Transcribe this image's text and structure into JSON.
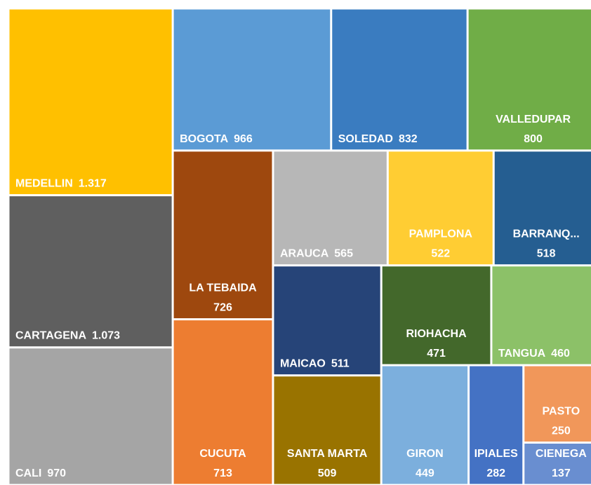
{
  "chart_data": {
    "type": "treemap",
    "categories": [
      "MEDELLIN",
      "CARTAGENA",
      "CALI",
      "BOGOTA",
      "SOLEDAD",
      "VALLEDUPAR",
      "LA TEBAIDA",
      "CUCUTA",
      "ARAUCA",
      "PAMPLONA",
      "BARRANQ...",
      "MAICAO",
      "SANTA MARTA",
      "RIOHACHA",
      "TANGUA",
      "GIRON",
      "IPIALES",
      "PASTO",
      "CIENEGA"
    ],
    "values": [
      1317,
      1073,
      970,
      966,
      832,
      800,
      726,
      713,
      565,
      522,
      518,
      511,
      509,
      471,
      460,
      449,
      282,
      250,
      137
    ],
    "value_labels": [
      "1.317",
      "1.073",
      "970",
      "966",
      "832",
      "800",
      "726",
      "713",
      "565",
      "522",
      "518",
      "511",
      "509",
      "471",
      "460",
      "449",
      "282",
      "250",
      "137"
    ],
    "colors": [
      "#ffc000",
      "#5f5f5f",
      "#a5a5a5",
      "#5b9bd5",
      "#3a7cc0",
      "#70ad47",
      "#9e480e",
      "#ed7d31",
      "#b7b7b7",
      "#ffcd33",
      "#255e91",
      "#264478",
      "#997300",
      "#43682b",
      "#8cc168",
      "#7cafdd",
      "#4472c4",
      "#f1975a",
      "#698ed0"
    ]
  }
}
